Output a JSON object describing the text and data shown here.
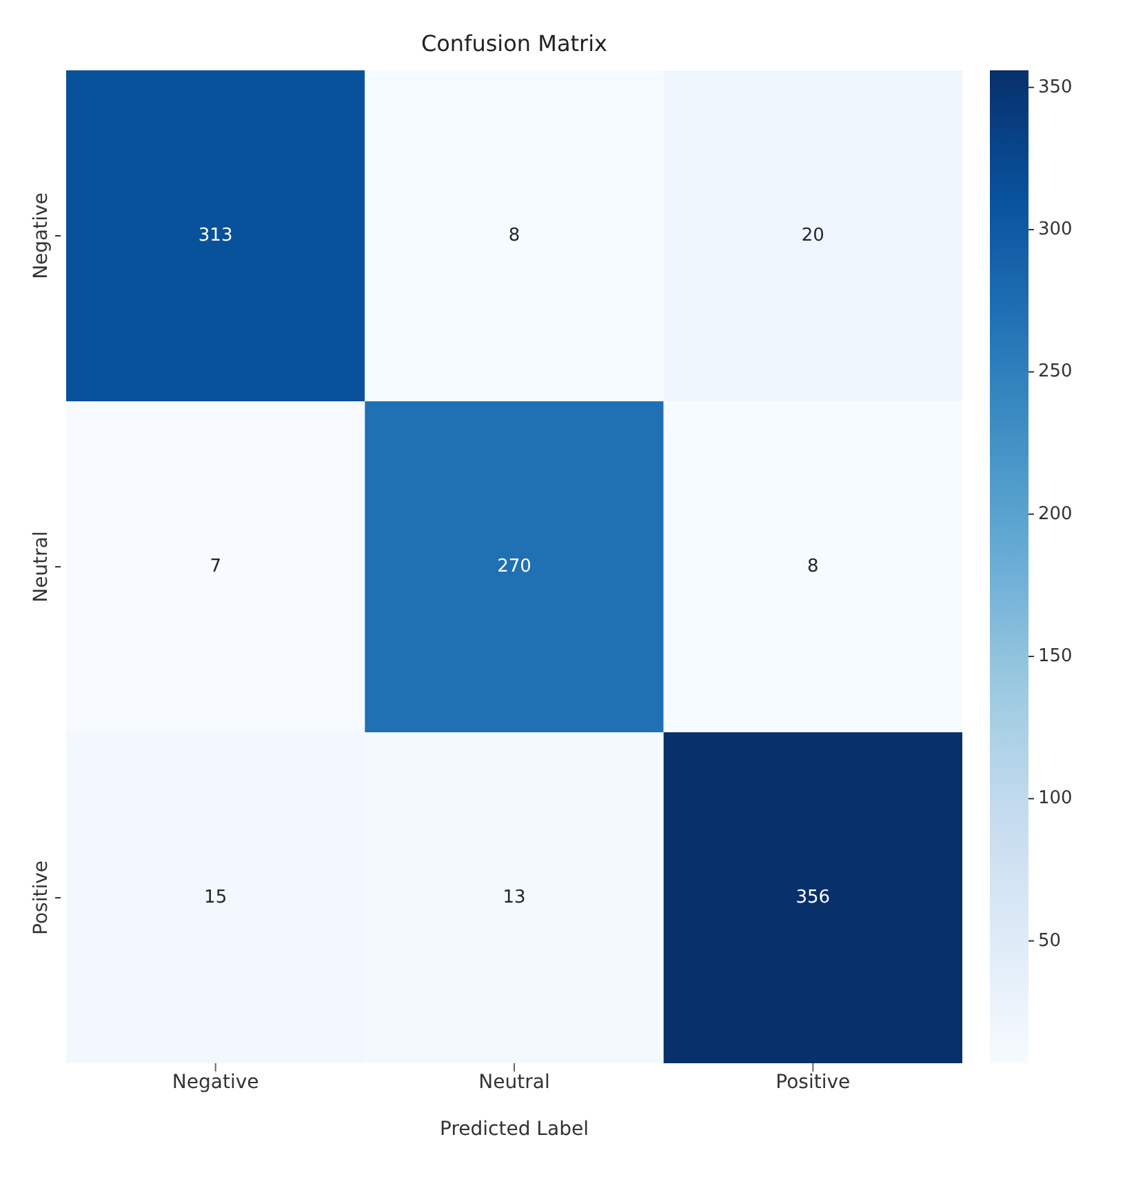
{
  "chart_data": {
    "type": "heatmap",
    "title": "Confusion Matrix",
    "xlabel": "Predicted Label",
    "categories": [
      "Negative",
      "Neutral",
      "Positive"
    ],
    "y_categories": [
      "Negative",
      "Neutral",
      "Positive"
    ],
    "cells": [
      [
        313,
        8,
        20
      ],
      [
        7,
        270,
        8
      ],
      [
        15,
        13,
        356
      ]
    ],
    "clim": [
      7,
      356
    ],
    "cticks": [
      50,
      100,
      150,
      200,
      250,
      300,
      350
    ],
    "data_labels": true
  }
}
